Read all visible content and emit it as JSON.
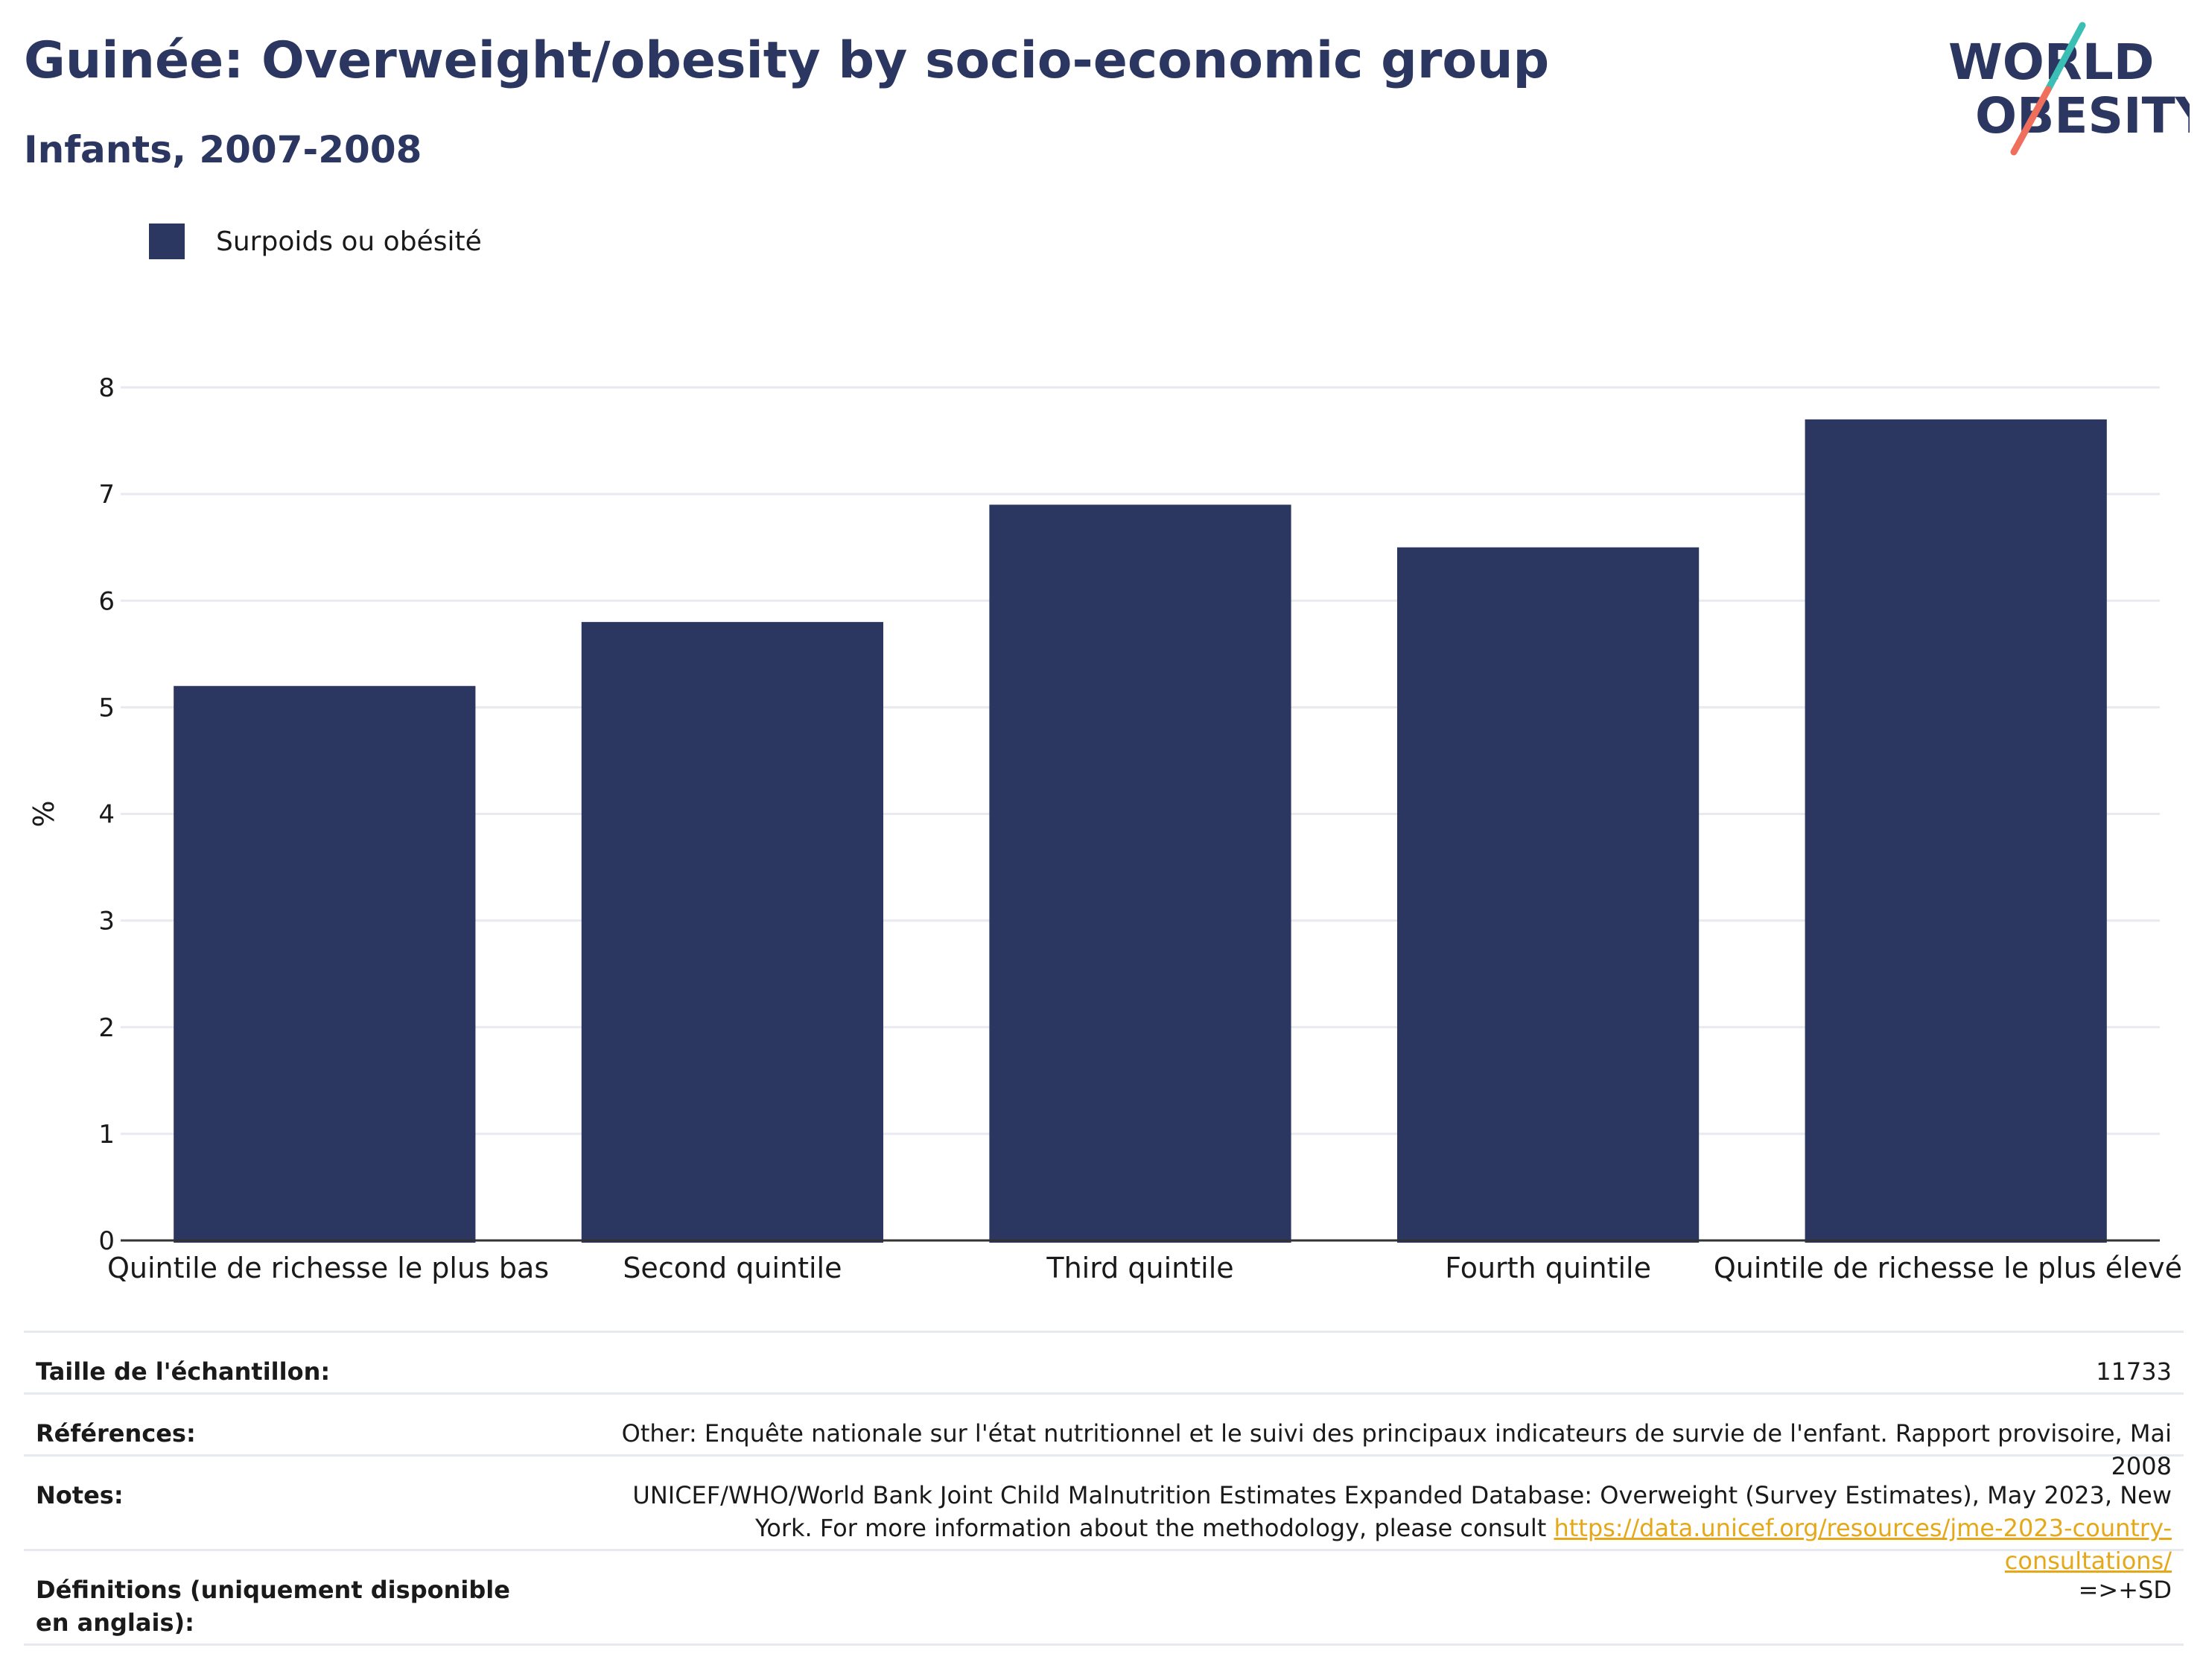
{
  "header": {
    "title": "Guinée: Overweight/obesity by socio-economic group",
    "subtitle": "Infants, 2007-2008"
  },
  "logo": {
    "line1": "WORLD",
    "line2": "OBESITY"
  },
  "colors": {
    "bar": "#2b3661",
    "title": "#2b3661",
    "grid": "#e8eaf0",
    "link": "#e5a818",
    "logo_teal": "#3bbfb5",
    "logo_coral": "#f06e5c"
  },
  "chart_data": {
    "type": "bar",
    "categories": [
      "Quintile de richesse le plus bas",
      "Second quintile",
      "Third quintile",
      "Fourth quintile",
      "Quintile de richesse le plus élevé"
    ],
    "series": [
      {
        "name": "Surpoids ou obésité",
        "values": [
          5.2,
          5.8,
          6.9,
          6.5,
          7.7
        ]
      }
    ],
    "title": "Guinée: Overweight/obesity by socio-economic group",
    "subtitle": "Infants, 2007-2008",
    "xlabel": "",
    "ylabel": "%",
    "ylim": [
      0,
      8
    ],
    "yticks": [
      0,
      1,
      2,
      3,
      4,
      5,
      6,
      7,
      8
    ],
    "grid": true,
    "legend_position": "top-left"
  },
  "info": {
    "rows": [
      {
        "label": "Taille de l'échantillon:",
        "value": "11733"
      },
      {
        "label": "Références:",
        "value": "Other: Enquête nationale sur l'état nutritionnel et le suivi des principaux indicateurs de survie de l'enfant. Rapport provisoire, Mai 2008"
      },
      {
        "label": "Notes:",
        "value_line1": "UNICEF/WHO/World Bank Joint Child Malnutrition Estimates Expanded Database: Overweight (Survey Estimates), May 2023, New",
        "value_line2": "York. For more information about the methodology, please consult ",
        "link": "https://data.unicef.org/resources/jme-2023-country-consultations/"
      },
      {
        "label": "Définitions (uniquement disponible en anglais):",
        "value": "=>+SD"
      }
    ]
  }
}
